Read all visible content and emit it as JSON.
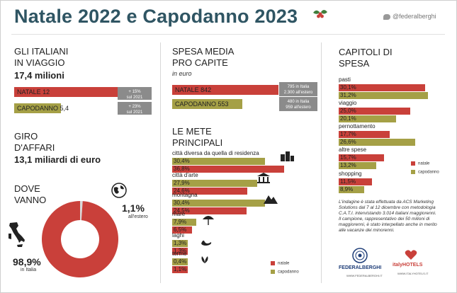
{
  "title": "Natale 2022 e Capodanno 2023",
  "twitter": "@federalberghi",
  "viaggio": {
    "heading_line1": "GLI ITALIANI",
    "heading_line2": "IN VIAGGIO",
    "total": "17,4 milioni",
    "natale_label": "NATALE 12",
    "natale_change_1": "+ 15%",
    "natale_change_2": "sul 2021",
    "capodanno_label": "CAPODANNO 5,4",
    "capodanno_change_1": "+ 23%",
    "capodanno_change_2": "sul 2021",
    "natale_value": 12,
    "capodanno_value": 5.4
  },
  "affari": {
    "heading_line1": "GIRO",
    "heading_line2": "D'AFFARI",
    "total": "13,1 miliardi di euro"
  },
  "dove": {
    "heading_line1": "DOVE",
    "heading_line2": "VANNO",
    "estero_value": "1,1%",
    "estero_label": "all'estero",
    "italia_value": "98,9%",
    "italia_label": "in Italia",
    "italia_pct": 98.9,
    "estero_pct": 1.1,
    "italy_icon": "italy-map-icon",
    "globe_icon": "globe-icon"
  },
  "spesa": {
    "heading_line1": "SPESA MEDIA",
    "heading_line2": "PRO CAPITE",
    "unit": "in euro",
    "natale_label": "NATALE 842",
    "natale_note_1": "795 in Italia",
    "natale_note_2": "2.300 all'estero",
    "capodanno_label": "CAPODANNO 553",
    "capodanno_note_1": "480 in Italia",
    "capodanno_note_2": "959 all'estero",
    "natale_value": 842,
    "capodanno_value": 553
  },
  "mete": {
    "heading_line1": "LE METE",
    "heading_line2": "PRINCIPALI",
    "items": [
      {
        "label": "città diversa da quella di residenza",
        "natale": "30,4%",
        "capodanno": "36,8%",
        "nv": 30.4,
        "cv": 36.8,
        "icon": "city-icon"
      },
      {
        "label": "città d'arte",
        "natale": "27,9%",
        "capodanno": "24,6%",
        "nv": 27.9,
        "cv": 24.6,
        "icon": "monument-icon"
      },
      {
        "label": "montagna",
        "natale": "30,4%",
        "capodanno": "24,5%",
        "nv": 30.4,
        "cv": 24.5,
        "icon": "mountain-icon"
      },
      {
        "label": "mare",
        "natale": "7,9%",
        "capodanno": "6,5%",
        "nv": 7.9,
        "cv": 6.5,
        "icon": "umbrella-icon"
      },
      {
        "label": "laghi",
        "natale": "1,3%",
        "capodanno": "1,3%",
        "nv": 1.3,
        "cv": 1.3,
        "icon": "swan-icon"
      },
      {
        "label": "terme",
        "natale": "0,4%",
        "capodanno": "1,1%",
        "nv": 0.4,
        "cv": 1.1,
        "icon": "spa-icon"
      }
    ],
    "legend_natale": "natale",
    "legend_capodanno": "capodanno"
  },
  "capitoli": {
    "heading_line1": "CAPITOLI DI",
    "heading_line2": "SPESA",
    "items": [
      {
        "label": "pasti",
        "natale": "30,1%",
        "capodanno": "31,2%",
        "nv": 30.1,
        "cv": 31.2
      },
      {
        "label": "viaggio",
        "natale": "25,0%",
        "capodanno": "20,1%",
        "nv": 25.0,
        "cv": 20.1
      },
      {
        "label": "pernottamento",
        "natale": "17,7%",
        "capodanno": "26,6%",
        "nv": 17.7,
        "cv": 26.6
      },
      {
        "label": "altre spese",
        "natale": "15,7%",
        "capodanno": "13,2%",
        "nv": 15.7,
        "cv": 13.2
      },
      {
        "label": "shopping",
        "natale": "11,5%",
        "capodanno": "8,9%",
        "nv": 11.5,
        "cv": 8.9
      }
    ],
    "legend_natale": "natale",
    "legend_capodanno": "capodanno"
  },
  "note": {
    "p1": "L'indagine è stata effettuata da ACS Marketing Solutions dal 7 al 12 dicembre con metodologia C.A.T.I. intervistando 3.014 italiani maggiorenni.",
    "p2": "Il campione, rappresentativo dei 50 milioni di maggiorenni, è stato interpellato anche in merito alle vacanze dei minorenni."
  },
  "logos": {
    "federalberghi": "FEDERALBERGHI",
    "federalberghi_url": "WWW.FEDERALBERGHI.IT",
    "italyhotels": "italyHOTELS",
    "italyhotels_url": "WWW.ITALYHOTELS.IT"
  },
  "colors": {
    "natale": "#c9403a",
    "capodanno": "#a5a046",
    "title": "#2f5563"
  }
}
